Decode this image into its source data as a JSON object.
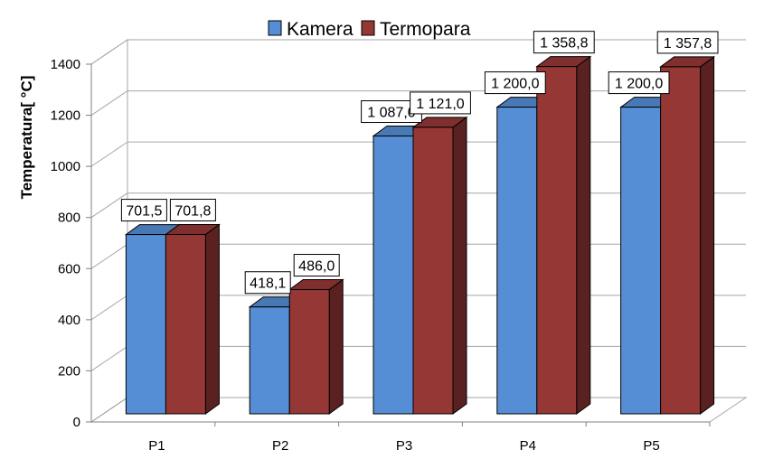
{
  "chart_data": {
    "type": "bar",
    "categories": [
      "P1",
      "P2",
      "P3",
      "P4",
      "P5"
    ],
    "series": [
      {
        "name": "Kamera",
        "values": [
          701.5,
          418.1,
          1087.0,
          1200.0,
          1200.0
        ],
        "labels": [
          "701,5",
          "418,1",
          "1 087,0",
          "1 200,0",
          "1 200,0"
        ],
        "color": "#558ed5"
      },
      {
        "name": "Termopara",
        "values": [
          701.8,
          486.0,
          1121.0,
          1358.8,
          1357.8
        ],
        "labels": [
          "701,8",
          "486,0",
          "1 121,0",
          "1 358,8",
          "1 357,8"
        ],
        "color": "#953735"
      }
    ],
    "ylabel": "Temperatura[ °C]",
    "xlabel": "",
    "ylim": [
      0,
      1400
    ],
    "yticks": [
      0,
      200,
      400,
      600,
      800,
      1000,
      1200,
      1400
    ],
    "grid": true,
    "legend": "top-center",
    "style": "3d-clustered-column"
  }
}
